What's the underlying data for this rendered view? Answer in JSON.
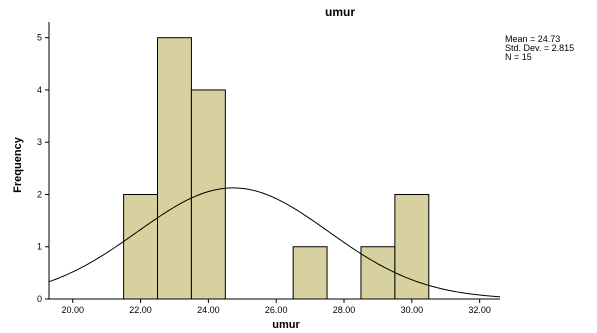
{
  "chart_data": {
    "type": "bar",
    "subtype": "histogram",
    "title": "umur",
    "xlabel": "umur",
    "ylabel": "Frequency",
    "xlim": [
      19.3,
      32.6
    ],
    "ylim": [
      0,
      5.3
    ],
    "x_ticks": [
      {
        "value": 20,
        "label": "20.00"
      },
      {
        "value": 22,
        "label": "22.00"
      },
      {
        "value": 24,
        "label": "24.00"
      },
      {
        "value": 26,
        "label": "26.00"
      },
      {
        "value": 28,
        "label": "28.00"
      },
      {
        "value": 30,
        "label": "30.00"
      },
      {
        "value": 32,
        "label": "32.00"
      }
    ],
    "y_ticks": [
      {
        "value": 0,
        "label": "0"
      },
      {
        "value": 1,
        "label": "1"
      },
      {
        "value": 2,
        "label": "2"
      },
      {
        "value": 3,
        "label": "3"
      },
      {
        "value": 4,
        "label": "4"
      },
      {
        "value": 5,
        "label": "5"
      }
    ],
    "bins": [
      {
        "from": 21.5,
        "to": 22.5,
        "count": 2
      },
      {
        "from": 22.5,
        "to": 23.5,
        "count": 5
      },
      {
        "from": 23.5,
        "to": 24.5,
        "count": 4
      },
      {
        "from": 26.5,
        "to": 27.5,
        "count": 1
      },
      {
        "from": 28.5,
        "to": 29.5,
        "count": 1
      },
      {
        "from": 29.5,
        "to": 30.5,
        "count": 2
      }
    ],
    "normal_curve": {
      "mean": 24.73,
      "std_dev": 2.815,
      "n": 15,
      "bin_width": 1
    },
    "stats_lines": [
      "Mean = 24.73",
      "Std. Dev. = 2.815",
      "N = 15"
    ],
    "colors": {
      "bar_fill": "#d6d19e",
      "bar_stroke": "#000000",
      "curve": "#000000",
      "axis": "#000000",
      "background": "#ffffff"
    },
    "grid": false,
    "legend": "none"
  }
}
